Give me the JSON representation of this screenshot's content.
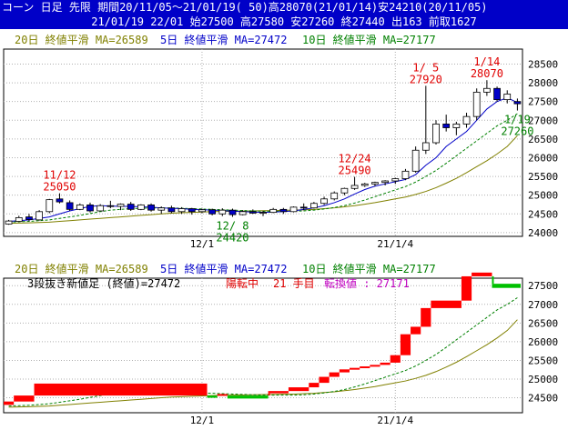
{
  "header": {
    "line1": "コーン 日足 先限 期間20/11/05～21/01/19( 50)高28070(21/01/14)安24210(20/11/05)",
    "line2": "21/01/19 22/01 始27500 高27580 安27260 終27440 出163 前取1627"
  },
  "colors": {
    "ma20": "#808000",
    "ma5": "#0000c8",
    "ma10": "#008000",
    "up": "#ffffff",
    "down": "#0000c8",
    "annot_red": "#e00000",
    "annot_green": "#008000",
    "brick_up": "#ff0000",
    "brick_down": "#00c000",
    "grid": "#b0b0b0"
  },
  "chart_data": [
    {
      "type": "candlestick",
      "legend": {
        "ma20": "20日 終値平滑 MA=26589",
        "ma5": "5日 終値平滑 MA=27472",
        "ma10": "10日 終値平滑 MA=27177"
      },
      "ylim": [
        23900,
        28900
      ],
      "yticks": [
        24000,
        24500,
        25000,
        25500,
        26000,
        26500,
        27000,
        27500,
        28000,
        28500
      ],
      "xtick_labels": [
        {
          "index": 19,
          "label": "12/1"
        },
        {
          "index": 38,
          "label": "21/1/4"
        }
      ],
      "annotations": [
        {
          "index": 5,
          "date": "11/12",
          "price": "25050",
          "color": "red",
          "pos": "above"
        },
        {
          "index": 22,
          "date": "12/ 8",
          "price": "24420",
          "color": "green",
          "pos": "below"
        },
        {
          "index": 34,
          "date": "12/24",
          "price": "25490",
          "color": "red",
          "pos": "above"
        },
        {
          "index": 41,
          "date": "1/ 5",
          "price": "27920",
          "color": "red",
          "pos": "above"
        },
        {
          "index": 47,
          "date": "1/14",
          "price": "28070",
          "color": "red",
          "pos": "above"
        },
        {
          "index": 50,
          "date": "1/19",
          "price": "27260",
          "color": "green",
          "pos": "below"
        }
      ],
      "candles": [
        {
          "o": 24230,
          "h": 24340,
          "l": 24210,
          "c": 24310
        },
        {
          "o": 24300,
          "h": 24450,
          "l": 24280,
          "c": 24400
        },
        {
          "o": 24420,
          "h": 24500,
          "l": 24300,
          "c": 24350
        },
        {
          "o": 24340,
          "h": 24600,
          "l": 24320,
          "c": 24560
        },
        {
          "o": 24560,
          "h": 24900,
          "l": 24520,
          "c": 24880
        },
        {
          "o": 24900,
          "h": 25050,
          "l": 24780,
          "c": 24820
        },
        {
          "o": 24800,
          "h": 24860,
          "l": 24580,
          "c": 24620
        },
        {
          "o": 24620,
          "h": 24780,
          "l": 24600,
          "c": 24740
        },
        {
          "o": 24740,
          "h": 24800,
          "l": 24540,
          "c": 24580
        },
        {
          "o": 24580,
          "h": 24760,
          "l": 24570,
          "c": 24720
        },
        {
          "o": 24720,
          "h": 24850,
          "l": 24650,
          "c": 24700
        },
        {
          "o": 24700,
          "h": 24780,
          "l": 24600,
          "c": 24760
        },
        {
          "o": 24760,
          "h": 24820,
          "l": 24580,
          "c": 24620
        },
        {
          "o": 24620,
          "h": 24760,
          "l": 24600,
          "c": 24740
        },
        {
          "o": 24740,
          "h": 24780,
          "l": 24560,
          "c": 24600
        },
        {
          "o": 24600,
          "h": 24700,
          "l": 24500,
          "c": 24660
        },
        {
          "o": 24660,
          "h": 24720,
          "l": 24520,
          "c": 24560
        },
        {
          "o": 24560,
          "h": 24680,
          "l": 24500,
          "c": 24640
        },
        {
          "o": 24640,
          "h": 24660,
          "l": 24480,
          "c": 24560
        },
        {
          "o": 24560,
          "h": 24640,
          "l": 24520,
          "c": 24610
        },
        {
          "o": 24610,
          "h": 24640,
          "l": 24460,
          "c": 24500
        },
        {
          "o": 24500,
          "h": 24650,
          "l": 24440,
          "c": 24600
        },
        {
          "o": 24600,
          "h": 24640,
          "l": 24420,
          "c": 24480
        },
        {
          "o": 24480,
          "h": 24600,
          "l": 24460,
          "c": 24560
        },
        {
          "o": 24560,
          "h": 24620,
          "l": 24500,
          "c": 24520
        },
        {
          "o": 24520,
          "h": 24580,
          "l": 24440,
          "c": 24540
        },
        {
          "o": 24540,
          "h": 24660,
          "l": 24520,
          "c": 24620
        },
        {
          "o": 24620,
          "h": 24660,
          "l": 24500,
          "c": 24560
        },
        {
          "o": 24560,
          "h": 24700,
          "l": 24540,
          "c": 24680
        },
        {
          "o": 24680,
          "h": 24780,
          "l": 24600,
          "c": 24660
        },
        {
          "o": 24660,
          "h": 24820,
          "l": 24640,
          "c": 24780
        },
        {
          "o": 24780,
          "h": 24960,
          "l": 24740,
          "c": 24900
        },
        {
          "o": 24900,
          "h": 25100,
          "l": 24860,
          "c": 25060
        },
        {
          "o": 25060,
          "h": 25200,
          "l": 25000,
          "c": 25180
        },
        {
          "o": 25180,
          "h": 25490,
          "l": 25140,
          "c": 25260
        },
        {
          "o": 25260,
          "h": 25330,
          "l": 25220,
          "c": 25300
        },
        {
          "o": 25300,
          "h": 25360,
          "l": 25240,
          "c": 25340
        },
        {
          "o": 25340,
          "h": 25400,
          "l": 25260,
          "c": 25380
        },
        {
          "o": 25380,
          "h": 25460,
          "l": 25300,
          "c": 25440
        },
        {
          "o": 25440,
          "h": 25700,
          "l": 25400,
          "c": 25640
        },
        {
          "o": 25640,
          "h": 26300,
          "l": 25600,
          "c": 26200
        },
        {
          "o": 26200,
          "h": 27920,
          "l": 26100,
          "c": 26400
        },
        {
          "o": 26400,
          "h": 27000,
          "l": 26350,
          "c": 26900
        },
        {
          "o": 26900,
          "h": 27150,
          "l": 26700,
          "c": 26800
        },
        {
          "o": 26800,
          "h": 26960,
          "l": 26600,
          "c": 26900
        },
        {
          "o": 26900,
          "h": 27200,
          "l": 26800,
          "c": 27100
        },
        {
          "o": 27100,
          "h": 27850,
          "l": 27000,
          "c": 27750
        },
        {
          "o": 27750,
          "h": 28070,
          "l": 27650,
          "c": 27850
        },
        {
          "o": 27850,
          "h": 27900,
          "l": 27500,
          "c": 27550
        },
        {
          "o": 27550,
          "h": 27800,
          "l": 27450,
          "c": 27700
        },
        {
          "o": 27500,
          "h": 27580,
          "l": 27260,
          "c": 27440
        }
      ],
      "ma5": [
        24300,
        24320,
        24340,
        24380,
        24420,
        24500,
        24580,
        24640,
        24700,
        24720,
        24710,
        24700,
        24700,
        24690,
        24680,
        24660,
        24650,
        24640,
        24620,
        24610,
        24600,
        24590,
        24570,
        24560,
        24550,
        24540,
        24550,
        24560,
        24580,
        24620,
        24660,
        24720,
        24800,
        24900,
        25030,
        25150,
        25240,
        25300,
        25360,
        25420,
        25550,
        25800,
        26000,
        26300,
        26500,
        26700,
        27000,
        27300,
        27500,
        27600,
        27472
      ],
      "ma10": [
        24280,
        24290,
        24300,
        24320,
        24340,
        24380,
        24420,
        24460,
        24510,
        24560,
        24600,
        24620,
        24640,
        24650,
        24660,
        24660,
        24660,
        24650,
        24640,
        24630,
        24620,
        24610,
        24600,
        24590,
        24580,
        24570,
        24570,
        24570,
        24570,
        24580,
        24600,
        24630,
        24670,
        24720,
        24790,
        24870,
        24960,
        25050,
        25140,
        25230,
        25350,
        25500,
        25660,
        25850,
        26050,
        26250,
        26450,
        26650,
        26850,
        27000,
        27177
      ],
      "ma20": [
        24250,
        24255,
        24260,
        24270,
        24280,
        24300,
        24320,
        24340,
        24360,
        24380,
        24400,
        24420,
        24440,
        24460,
        24480,
        24500,
        24520,
        24530,
        24540,
        24550,
        24560,
        24565,
        24570,
        24575,
        24580,
        24585,
        24590,
        24595,
        24600,
        24610,
        24620,
        24640,
        24660,
        24690,
        24720,
        24760,
        24800,
        24850,
        24900,
        24950,
        25020,
        25100,
        25200,
        25320,
        25450,
        25600,
        25760,
        25920,
        26100,
        26300,
        26589
      ]
    },
    {
      "type": "three-line-break",
      "legend": {
        "ma20": "20日 終値平滑 MA=26589",
        "ma5": "5日 終値平滑 MA=27472",
        "ma10": "10日 終値平滑 MA=27177"
      },
      "info": {
        "title": "3段抜き新値足 (終値)=27472",
        "state": "陽転中",
        "count": "21 手目",
        "switch": "転換値 : 27171"
      },
      "ylim": [
        24100,
        27700
      ],
      "yticks": [
        24500,
        25000,
        25500,
        26000,
        26500,
        27000,
        27500
      ],
      "xtick_labels": [
        {
          "index": 19,
          "label": "12/1"
        },
        {
          "index": 38,
          "label": "21/1/4"
        }
      ]
    }
  ]
}
